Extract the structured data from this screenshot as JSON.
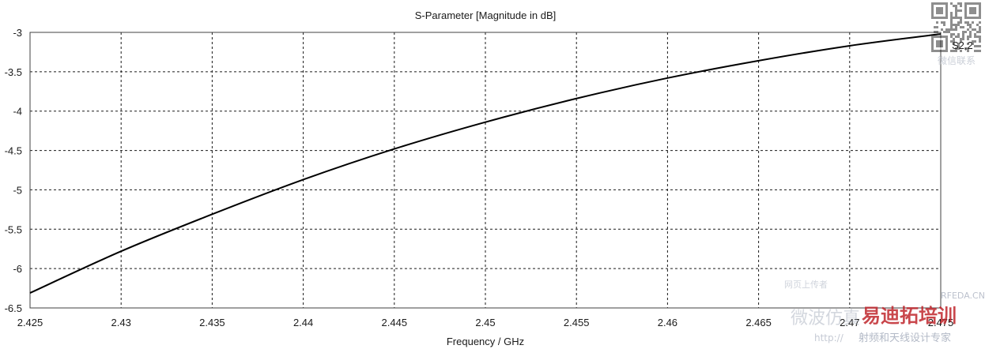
{
  "colors": {
    "series": "#000000",
    "grid": "#1a1a1a",
    "frame": "#404040",
    "watermark_red": "#c0272d",
    "watermark_gray": "#a0a8b8"
  },
  "watermark": {
    "qr_caption": "微信联系",
    "site": "RFEDA.CN",
    "cn_small": "网页上传者",
    "cn_brand": "易迪拓培训",
    "url": "http://",
    "cn_tagline": "射频和天线设计专家",
    "cn_script": "微波仿真"
  },
  "chart_data": {
    "type": "line",
    "title": "S-Parameter [Magnitude in dB]",
    "xlabel": "Frequency / GHz",
    "ylabel": "",
    "xlim": [
      2.425,
      2.475
    ],
    "ylim": [
      -6.5,
      -3
    ],
    "grid": true,
    "x_ticks": [
      "2.425",
      "2.43",
      "2.435",
      "2.44",
      "2.445",
      "2.45",
      "2.455",
      "2.46",
      "2.465",
      "2.47",
      "2.475"
    ],
    "y_ticks": [
      "-3",
      "-3.5",
      "-4",
      "-4.5",
      "-5",
      "-5.5",
      "-6",
      "-6.5"
    ],
    "series": [
      {
        "name": "S2,2",
        "x": [
          2.425,
          2.43,
          2.435,
          2.44,
          2.445,
          2.45,
          2.455,
          2.46,
          2.465,
          2.47,
          2.475
        ],
        "y": [
          -6.31,
          -5.78,
          -5.31,
          -4.87,
          -4.48,
          -4.14,
          -3.84,
          -3.58,
          -3.36,
          -3.17,
          -3.02
        ]
      }
    ]
  }
}
